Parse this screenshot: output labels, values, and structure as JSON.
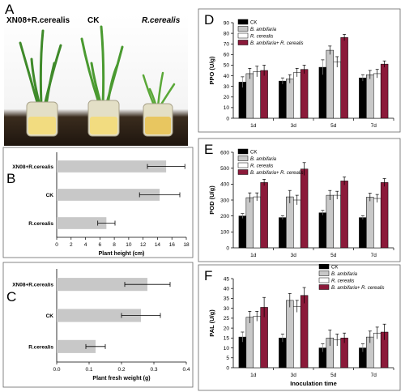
{
  "panel_A": {
    "letter": "A",
    "labels": [
      "XN08+R.cerealis",
      "CK",
      "R.cerealis"
    ],
    "colors": {
      "background_top": "#ffffff",
      "table": "#2a2018",
      "plant": "#3f8a2a",
      "jar": "#d9d4b8",
      "agar": "#f0d878"
    }
  },
  "chart_data": [
    {
      "id": "B",
      "letter": "B",
      "type": "bar",
      "orientation": "horizontal",
      "categories": [
        "XN08+R.cerealis",
        "CK",
        "R.cerealis"
      ],
      "values": [
        15.2,
        14.3,
        6.9
      ],
      "errors": [
        2.6,
        2.8,
        1.2
      ],
      "xlabel": "Plant height (cm)",
      "xlim": [
        0,
        18
      ],
      "xticks": [
        "0",
        "2",
        "4",
        "6",
        "8",
        "10",
        "12",
        "14",
        "16",
        "18"
      ],
      "bar_color": "#c8c8c8"
    },
    {
      "id": "C",
      "letter": "C",
      "type": "bar",
      "orientation": "horizontal",
      "categories": [
        "XN08+R.cerealis",
        "CK",
        "R.cerealis"
      ],
      "values": [
        0.28,
        0.26,
        0.12
      ],
      "errors": [
        0.07,
        0.06,
        0.03
      ],
      "xlabel": "Plant fresh weight (g)",
      "xlim": [
        0,
        0.4
      ],
      "xticks": [
        "0.0",
        "0.1",
        "0.2",
        "0.3",
        "0.4"
      ],
      "bar_color": "#c8c8c8"
    },
    {
      "id": "D",
      "letter": "D",
      "type": "bar",
      "categories": [
        "1d",
        "3d",
        "5d",
        "7d"
      ],
      "ylabel": "PPO (U/g)",
      "ylim": [
        0,
        90
      ],
      "yticks": [
        "0",
        "10",
        "20",
        "30",
        "40",
        "50",
        "60",
        "70",
        "80",
        "90"
      ],
      "legend": [
        "CK",
        "B. ambifaria",
        "R. cerealis",
        "B. ambifaria+ R. cerealis"
      ],
      "legend_position": "top-left",
      "series": [
        {
          "values": [
            34,
            35,
            48,
            38
          ],
          "errors": [
            5,
            3,
            7,
            3
          ]
        },
        {
          "values": [
            42,
            37,
            64,
            41
          ],
          "errors": [
            5,
            4,
            4,
            4
          ]
        },
        {
          "values": [
            44,
            43,
            53,
            42
          ],
          "errors": [
            5,
            4,
            5,
            4
          ]
        },
        {
          "values": [
            45,
            46,
            76,
            51
          ],
          "errors": [
            5,
            4,
            3,
            3
          ]
        }
      ]
    },
    {
      "id": "E",
      "letter": "E",
      "type": "bar",
      "categories": [
        "1d",
        "3d",
        "5d",
        "7d"
      ],
      "ylabel": "POD (U/g)",
      "ylim": [
        0,
        600
      ],
      "yticks": [
        "0",
        "100",
        "200",
        "300",
        "400",
        "500",
        "600"
      ],
      "legend": [
        "CK",
        "B. ambifaria",
        "R. cerealis",
        "B. ambifaria+ R. cerealis"
      ],
      "legend_position": "top-left",
      "series": [
        {
          "values": [
            200,
            190,
            220,
            190
          ],
          "errors": [
            15,
            12,
            15,
            12
          ]
        },
        {
          "values": [
            315,
            320,
            330,
            318
          ],
          "errors": [
            30,
            40,
            30,
            25
          ]
        },
        {
          "values": [
            320,
            300,
            330,
            310
          ],
          "errors": [
            25,
            30,
            25,
            25
          ]
        },
        {
          "values": [
            410,
            495,
            420,
            410
          ],
          "errors": [
            20,
            40,
            25,
            25
          ]
        }
      ]
    },
    {
      "id": "F",
      "letter": "F",
      "type": "bar",
      "categories": [
        "1d",
        "3d",
        "5d",
        "7d"
      ],
      "ylabel": "PAL (U/g)",
      "xlabel": "Inoculation time",
      "ylim": [
        0,
        45
      ],
      "yticks": [
        "0",
        "5",
        "10",
        "15",
        "20",
        "25",
        "30",
        "35",
        "40",
        "45"
      ],
      "legend": [
        "CK",
        "B. ambifaria",
        "R. cerealis",
        "B. ambifaria+ R. cerealis"
      ],
      "legend_position": "top-left",
      "series": [
        {
          "values": [
            15.5,
            15,
            10,
            10
          ],
          "errors": [
            2.5,
            2,
            2,
            2
          ]
        },
        {
          "values": [
            25.5,
            34,
            15,
            15.5
          ],
          "errors": [
            3,
            3.5,
            4,
            3
          ]
        },
        {
          "values": [
            26,
            31,
            14,
            17.5
          ],
          "errors": [
            2.5,
            3,
            3,
            3
          ]
        },
        {
          "values": [
            30.5,
            36.5,
            15,
            18
          ],
          "errors": [
            5,
            4,
            2.5,
            4
          ]
        }
      ]
    }
  ],
  "series_colors": [
    "#000000",
    "#c8c8c8",
    "#ffffff",
    "#8b1a3a"
  ]
}
